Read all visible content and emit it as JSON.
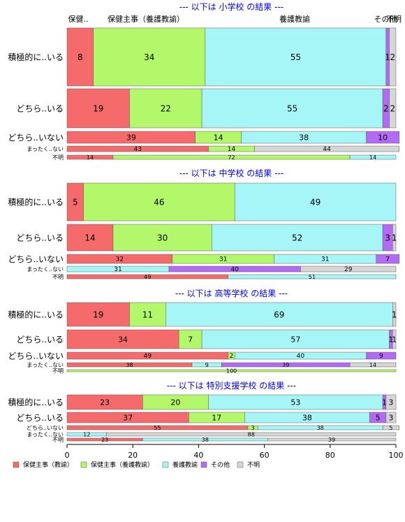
{
  "chart_data": {
    "type": "bar",
    "orientation": "horizontal",
    "stacked": true,
    "percent": true,
    "xlim": [
      0,
      100
    ],
    "x_ticks": [
      0,
      20,
      40,
      60,
      80,
      100
    ],
    "series_names": [
      "保健主事（教諭）",
      "保健主事（養護教諭）",
      "養護教諭",
      "その他",
      "不明"
    ],
    "colors": [
      "#F56B6B",
      "#B3F76B",
      "#A6F5F7",
      "#B36BF5",
      "#D6D6D6"
    ],
    "top_labels": [
      "保健..",
      "保健主事（養護教諭）",
      "養護教諭",
      "その他",
      "不明"
    ],
    "panels": [
      {
        "title": "--- 以下は 小学校 の結果 ---",
        "rows": [
          {
            "label": "積極的に..いる",
            "values": [
              8,
              34,
              55,
              1,
              2
            ],
            "value_labels": [
              "8",
              "34",
              "55",
              "1",
              "2"
            ]
          },
          {
            "label": "どちら..いる",
            "values": [
              19,
              22,
              55,
              2,
              2
            ],
            "value_labels": [
              "19",
              "22",
              "55",
              "2",
              "2"
            ]
          },
          {
            "label": "どちら..いない",
            "values": [
              39,
              14,
              38,
              10,
              0
            ],
            "value_labels": [
              "39",
              "14",
              "38",
              "10",
              ""
            ]
          },
          {
            "label": "まったく..ない",
            "values": [
              43,
              14,
              0,
              0,
              44
            ],
            "value_labels": [
              "43",
              "14",
              "",
              "",
              "44"
            ]
          },
          {
            "label": "不明",
            "values": [
              14,
              72,
              14,
              0,
              0
            ],
            "value_labels": [
              "14",
              "72",
              "14",
              "",
              ""
            ]
          }
        ]
      },
      {
        "title": "--- 以下は 中学校 の結果 ---",
        "rows": [
          {
            "label": "積極的に..いる",
            "values": [
              5,
              46,
              49,
              0,
              0
            ],
            "value_labels": [
              "5",
              "46",
              "49",
              "",
              ""
            ]
          },
          {
            "label": "どちら..いる",
            "values": [
              14,
              30,
              52,
              3,
              1
            ],
            "value_labels": [
              "14",
              "30",
              "52",
              "3",
              "1"
            ]
          },
          {
            "label": "どちら..いない",
            "values": [
              32,
              31,
              31,
              7,
              0
            ],
            "value_labels": [
              "32",
              "31",
              "31",
              "7",
              ""
            ]
          },
          {
            "label": "まったく..ない",
            "values": [
              0,
              0,
              31,
              40,
              29
            ],
            "value_labels": [
              "",
              "",
              "31",
              "40",
              "29"
            ]
          },
          {
            "label": "不明",
            "values": [
              49,
              0,
              51,
              0,
              0
            ],
            "value_labels": [
              "49",
              "",
              "51",
              "",
              ""
            ]
          }
        ]
      },
      {
        "title": "--- 以下は 高等学校 の結果 ---",
        "rows": [
          {
            "label": "積極的に..いる",
            "values": [
              19,
              11,
              69,
              0,
              1
            ],
            "value_labels": [
              "19",
              "11",
              "69",
              "",
              "1"
            ]
          },
          {
            "label": "どちら..いる",
            "values": [
              34,
              7,
              57,
              1,
              1
            ],
            "value_labels": [
              "34",
              "7",
              "57",
              "1",
              "1"
            ]
          },
          {
            "label": "どちら..いない",
            "values": [
              49,
              2,
              40,
              9,
              0
            ],
            "value_labels": [
              "49",
              "2",
              "40",
              "9",
              ""
            ]
          },
          {
            "label": "まったく..ない",
            "values": [
              38,
              0,
              9,
              39,
              14
            ],
            "value_labels": [
              "38",
              "",
              "9",
              "39",
              "14"
            ]
          },
          {
            "label": "不明",
            "values": [
              0,
              100,
              0,
              0,
              0
            ],
            "value_labels": [
              "",
              "100",
              "",
              "",
              ""
            ]
          }
        ]
      },
      {
        "title": "--- 以下は 特別支援学校 の結果 ---",
        "rows": [
          {
            "label": "積極的に..いる",
            "values": [
              23,
              20,
              53,
              1,
              3
            ],
            "value_labels": [
              "23",
              "20",
              "53",
              "1",
              "3"
            ]
          },
          {
            "label": "どちら..いる",
            "values": [
              37,
              17,
              38,
              5,
              3
            ],
            "value_labels": [
              "37",
              "17",
              "38",
              "5",
              "3"
            ]
          },
          {
            "label": "どちら..いない",
            "values": [
              55,
              3,
              38,
              0,
              5
            ],
            "value_labels": [
              "55",
              "3",
              "38",
              "",
              "5"
            ]
          },
          {
            "label": "まったく..ない",
            "values": [
              0,
              0,
              12,
              0,
              88
            ],
            "value_labels": [
              "",
              "",
              "12",
              "",
              "88"
            ]
          },
          {
            "label": "不明",
            "values": [
              23,
              0,
              38,
              0,
              39
            ],
            "value_labels": [
              "23",
              "",
              "38",
              "",
              "39"
            ]
          }
        ]
      }
    ],
    "legend": {
      "position": "bottom",
      "entries": [
        "保健主事（教諭）",
        "保健主事（養護教諭）",
        "養護教諭",
        "その他",
        "不明"
      ]
    }
  }
}
